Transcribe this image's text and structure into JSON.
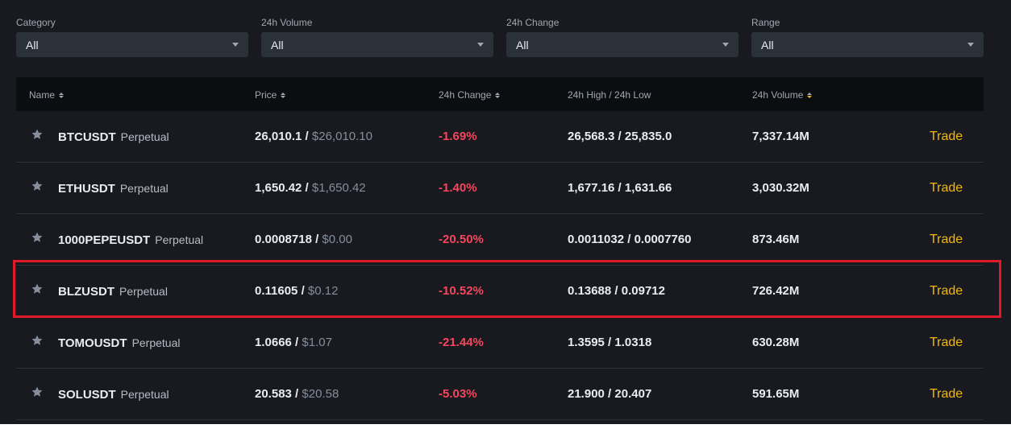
{
  "filters": [
    {
      "label": "Category",
      "value": "All"
    },
    {
      "label": "24h Volume",
      "value": "All"
    },
    {
      "label": "24h Change",
      "value": "All"
    },
    {
      "label": "Range",
      "value": "All"
    }
  ],
  "table": {
    "columns": {
      "name": "Name",
      "price": "Price",
      "change": "24h Change",
      "highlow": "24h High / 24h Low",
      "volume": "24h Volume"
    },
    "trade_label": "Trade",
    "rows": [
      {
        "symbol": "BTCUSDT",
        "contract": "Perpetual",
        "price": "26,010.1",
        "price_usd": "$26,010.10",
        "change": "-1.69%",
        "high": "26,568.3",
        "low": "25,835.0",
        "volume": "7,337.14M"
      },
      {
        "symbol": "ETHUSDT",
        "contract": "Perpetual",
        "price": "1,650.42",
        "price_usd": "$1,650.42",
        "change": "-1.40%",
        "high": "1,677.16",
        "low": "1,631.66",
        "volume": "3,030.32M"
      },
      {
        "symbol": "1000PEPEUSDT",
        "contract": "Perpetual",
        "price": "0.0008718",
        "price_usd": "$0.00",
        "change": "-20.50%",
        "high": "0.0011032",
        "low": "0.0007760",
        "volume": "873.46M"
      },
      {
        "symbol": "BLZUSDT",
        "contract": "Perpetual",
        "price": "0.11605",
        "price_usd": "$0.12",
        "change": "-10.52%",
        "high": "0.13688",
        "low": "0.09712",
        "volume": "726.42M"
      },
      {
        "symbol": "TOMOUSDT",
        "contract": "Perpetual",
        "price": "1.0666",
        "price_usd": "$1.07",
        "change": "-21.44%",
        "high": "1.3595",
        "low": "1.0318",
        "volume": "630.28M"
      },
      {
        "symbol": "SOLUSDT",
        "contract": "Perpetual",
        "price": "20.583",
        "price_usd": "$20.58",
        "change": "-5.03%",
        "high": "21.900",
        "low": "20.407",
        "volume": "591.65M"
      }
    ]
  },
  "colors": {
    "background": "#181a20",
    "negative": "#f6465d",
    "accent": "#f0b90b",
    "highlight": "#e0192b"
  },
  "icons": {
    "favorite": "star-icon",
    "sort": "sort-icon",
    "dropdown": "chevron-down-icon"
  }
}
